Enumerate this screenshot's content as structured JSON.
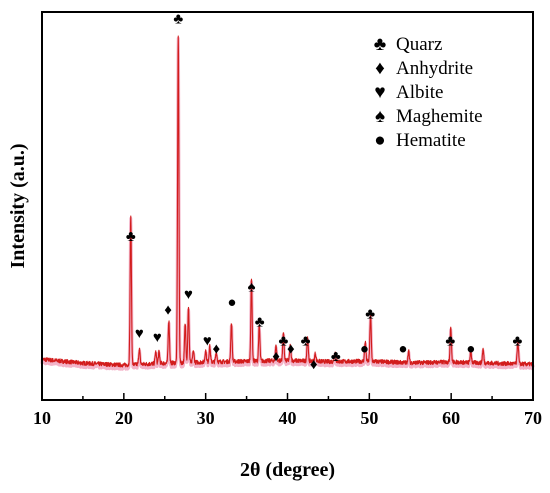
{
  "chart_data": {
    "type": "line",
    "title": "",
    "xlabel": "2θ (degree)",
    "ylabel": "Intensity (a.u.)",
    "xlim": [
      10,
      70
    ],
    "x_ticks": [
      10,
      20,
      30,
      40,
      50,
      60,
      70
    ],
    "ylim": [
      0,
      100
    ],
    "y_ticks_shown": false,
    "grid": false,
    "legend_position": "top-right",
    "line_color": "#d21c1c",
    "shadow_color": "#f3b3c8",
    "series": [
      {
        "baseline": 9.5,
        "baseline_points": [
          [
            10,
            10.5
          ],
          [
            15,
            9.5
          ],
          [
            20,
            9.0
          ],
          [
            25,
            9.5
          ],
          [
            30,
            9.8
          ],
          [
            35,
            10.0
          ],
          [
            40,
            10.2
          ],
          [
            45,
            9.9
          ],
          [
            50,
            10.0
          ],
          [
            55,
            9.6
          ],
          [
            60,
            9.8
          ],
          [
            65,
            9.5
          ],
          [
            70,
            9.2
          ]
        ],
        "peaks": [
          [
            20.85,
            38
          ],
          [
            21.9,
            4
          ],
          [
            23.9,
            3
          ],
          [
            24.3,
            3
          ],
          [
            25.5,
            11
          ],
          [
            26.65,
            84
          ],
          [
            27.5,
            10
          ],
          [
            27.9,
            14
          ],
          [
            28.5,
            3
          ],
          [
            30.0,
            3
          ],
          [
            30.5,
            4
          ],
          [
            31.3,
            2.5
          ],
          [
            33.15,
            10
          ],
          [
            35.6,
            21
          ],
          [
            36.55,
            9
          ],
          [
            38.6,
            4
          ],
          [
            39.5,
            7
          ],
          [
            40.35,
            4
          ],
          [
            42.45,
            6
          ],
          [
            43.4,
            2
          ],
          [
            45.8,
            2.5
          ],
          [
            49.5,
            5
          ],
          [
            50.15,
            12
          ],
          [
            54.8,
            3
          ],
          [
            59.95,
            9
          ],
          [
            62.4,
            3
          ],
          [
            63.9,
            3.5
          ],
          [
            68.15,
            6
          ]
        ]
      }
    ],
    "legend": [
      {
        "glyph": "♣",
        "label": "Quarz"
      },
      {
        "glyph": "♦",
        "label": "Anhydrite"
      },
      {
        "glyph": "♥",
        "label": "Albite"
      },
      {
        "glyph": "♠",
        "label": "Maghemite"
      },
      {
        "glyph": "●",
        "label": "Hematite"
      }
    ],
    "annotations": [
      {
        "glyph": "♣",
        "x": 20.85,
        "y": 41
      },
      {
        "glyph": "♥",
        "x": 21.9,
        "y": 16
      },
      {
        "glyph": "♥",
        "x": 24.1,
        "y": 15
      },
      {
        "glyph": "♦",
        "x": 25.4,
        "y": 22
      },
      {
        "glyph": "♣",
        "x": 26.65,
        "y": 97
      },
      {
        "glyph": "♥",
        "x": 27.9,
        "y": 26
      },
      {
        "glyph": "♥",
        "x": 30.2,
        "y": 14
      },
      {
        "glyph": "♦",
        "x": 31.3,
        "y": 12
      },
      {
        "glyph": "●",
        "x": 33.2,
        "y": 24
      },
      {
        "glyph": "♠",
        "x": 35.6,
        "y": 28
      },
      {
        "glyph": "♣",
        "x": 36.6,
        "y": 19
      },
      {
        "glyph": "♦",
        "x": 38.6,
        "y": 10
      },
      {
        "glyph": "♣",
        "x": 39.5,
        "y": 14
      },
      {
        "glyph": "♦",
        "x": 40.4,
        "y": 12
      },
      {
        "glyph": "♣",
        "x": 42.2,
        "y": 14
      },
      {
        "glyph": "♦",
        "x": 43.2,
        "y": 8
      },
      {
        "glyph": "♣",
        "x": 45.9,
        "y": 10
      },
      {
        "glyph": "●",
        "x": 49.4,
        "y": 12
      },
      {
        "glyph": "♣",
        "x": 50.1,
        "y": 21
      },
      {
        "glyph": "●",
        "x": 54.1,
        "y": 12
      },
      {
        "glyph": "♣",
        "x": 59.9,
        "y": 14
      },
      {
        "glyph": "●",
        "x": 62.4,
        "y": 12
      },
      {
        "glyph": "♣",
        "x": 68.1,
        "y": 14
      }
    ]
  }
}
